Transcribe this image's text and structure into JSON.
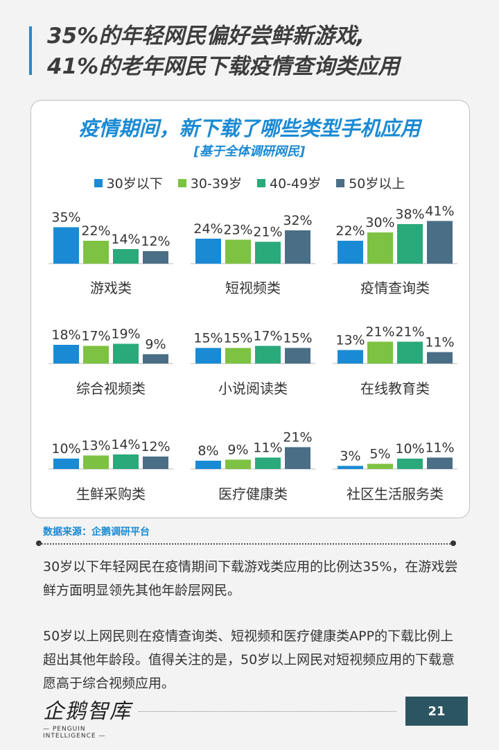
{
  "header": {
    "line1": "35%的年轻网民偏好尝鲜新游戏,",
    "line2": "41%的老年网民下载疫情查询类应用"
  },
  "chart_data": {
    "type": "bar",
    "title": "疫情期间，新下载了哪些类型手机应用",
    "subtitle": "[基于全体调研网民]",
    "unit": "%",
    "legend_position": "top",
    "series": [
      {
        "name": "30岁以下",
        "color": "#1a8ad4"
      },
      {
        "name": "30-39岁",
        "color": "#7dc242"
      },
      {
        "name": "40-49岁",
        "color": "#2aa97a"
      },
      {
        "name": "50岁以上",
        "color": "#4a6e86"
      }
    ],
    "groups": [
      {
        "category": "游戏类",
        "values": [
          35,
          22,
          14,
          12
        ]
      },
      {
        "category": "短视频类",
        "values": [
          24,
          23,
          21,
          32
        ]
      },
      {
        "category": "疫情查询类",
        "values": [
          22,
          30,
          38,
          41
        ]
      },
      {
        "category": "综合视频类",
        "values": [
          18,
          17,
          19,
          9
        ]
      },
      {
        "category": "小说阅读类",
        "values": [
          15,
          15,
          17,
          15
        ]
      },
      {
        "category": "在线教育类",
        "values": [
          13,
          21,
          21,
          11
        ]
      },
      {
        "category": "生鲜采购类",
        "values": [
          10,
          13,
          14,
          12
        ]
      },
      {
        "category": "医疗健康类",
        "values": [
          8,
          9,
          11,
          21
        ]
      },
      {
        "category": "社区生活服务类",
        "values": [
          3,
          5,
          10,
          11
        ]
      }
    ]
  },
  "source": "数据来源：企鹅调研平台",
  "paragraphs": [
    "30岁以下年轻网民在疫情期间下载游戏类应用的比例达35%，在游戏尝鲜方面明显领先其他年龄层网民。",
    "50岁以上网民则在疫情查询类、短视频和医疗健康类APP的下载比例上超出其他年龄段。值得关注的是，50岁以上网民对短视频应用的下载意愿高于综合视频应用。"
  ],
  "logo": {
    "main": "企鹅智库",
    "sub": "— PENGUIN  INTELLIGENCE —"
  },
  "page_number": "21"
}
